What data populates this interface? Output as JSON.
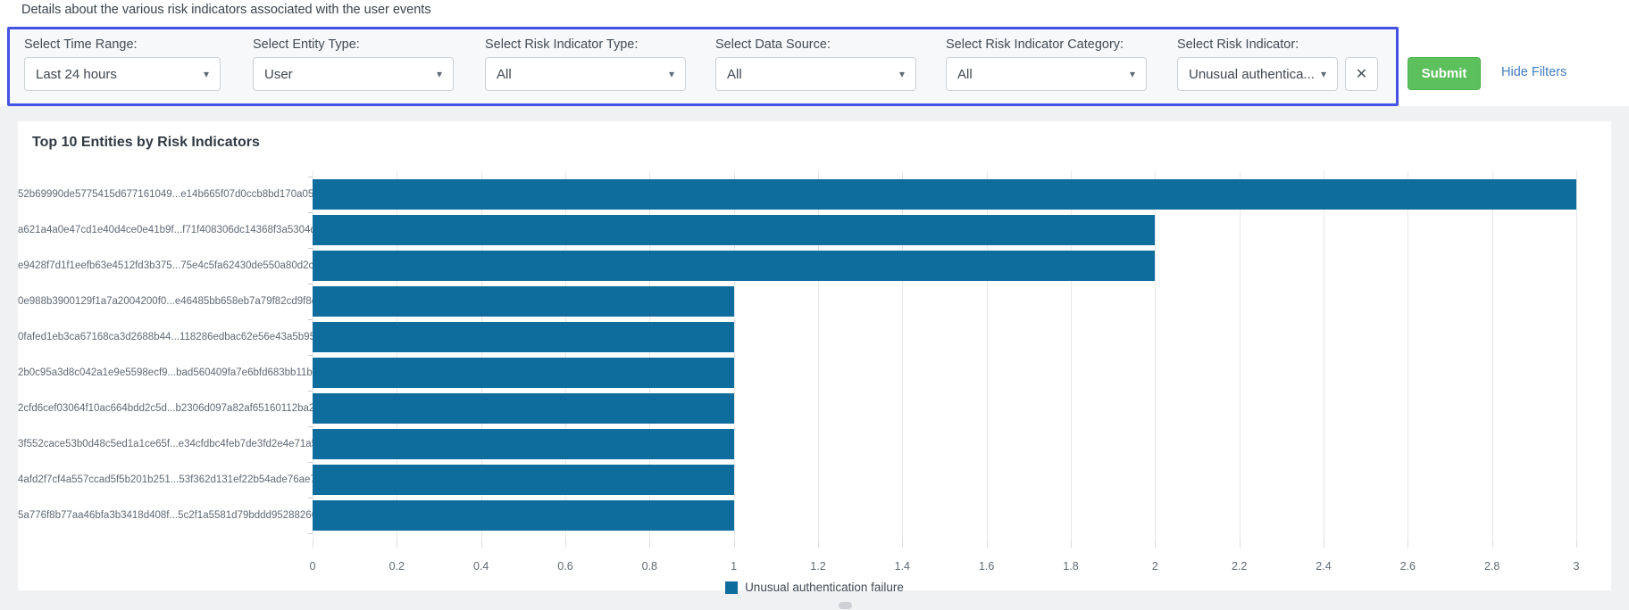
{
  "page": {
    "description": "Details about the various risk indicators associated with the user events"
  },
  "filters": {
    "fields": [
      {
        "label": "Select Time Range:",
        "value": "Last 24 hours"
      },
      {
        "label": "Select Entity Type:",
        "value": "User"
      },
      {
        "label": "Select Risk Indicator Type:",
        "value": "All"
      },
      {
        "label": "Select Data Source:",
        "value": "All"
      },
      {
        "label": "Select Risk Indicator Category:",
        "value": "All"
      },
      {
        "label": "Select Risk Indicator:",
        "value": "Unusual authentica..."
      }
    ],
    "caret_glyph": "▾",
    "clear_glyph": "✕",
    "submit_label": "Submit",
    "hide_filters_label": "Hide Filters"
  },
  "chart_data": {
    "type": "bar",
    "orientation": "horizontal",
    "title": "Top 10 Entities by Risk Indicators",
    "categories": [
      "52b69990de5775415d677161049...e14b665f07d0ccb8bd170a0528d",
      "a621a4a0e47cd1e40d4ce0e41b9f...f71f408306dc14368f3a5304d332",
      "e9428f7d1f1eefb63e4512fd3b375...75e4c5fa62430de550a80d2c3a",
      "0e988b3900129f1a7a2004200f0...e46485bb658eb7a79f82cd9f8cc",
      "0fafed1eb3ca67168ca3d2688b44...118286edbac62e56e43a5b95abf",
      "2b0c95a3d8c042a1e9e5598ecf9...bad560409fa7e6bfd683bb11b0ef",
      "2cfd6cef03064f10ac664bdd2c5d...b2306d097a82af65160112ba2c7",
      "3f552cace53b0d48c5ed1a1ce65f...e34cfdbc4feb7de3fd2e4e71a51d",
      "4afd2f7cf4a557ccad5f5b201b251...53f362d131ef22b54ade76ae7a2d",
      "5a776f8b77aa46bfa3b3418d408f...5c2f1a5581d79bddd95288266f6"
    ],
    "series": [
      {
        "name": "Unusual authentication failure",
        "values": [
          3,
          2,
          2,
          1,
          1,
          1,
          1,
          1,
          1,
          1
        ]
      }
    ],
    "xlim": [
      0,
      3
    ],
    "xtick_labels": [
      "0",
      "0.2",
      "0.4",
      "0.6",
      "0.8",
      "1",
      "1.2",
      "1.4",
      "1.6",
      "1.8",
      "2",
      "2.2",
      "2.4",
      "2.6",
      "2.8",
      "3"
    ],
    "grid": true,
    "legend_position": "bottom",
    "bar_color": "#0f6d9d"
  },
  "colors": {
    "filter_border": "#4453e2",
    "submit_green": "#5cc05c",
    "link_blue": "#3e7cc1",
    "bar_blue": "#0f6d9d"
  }
}
